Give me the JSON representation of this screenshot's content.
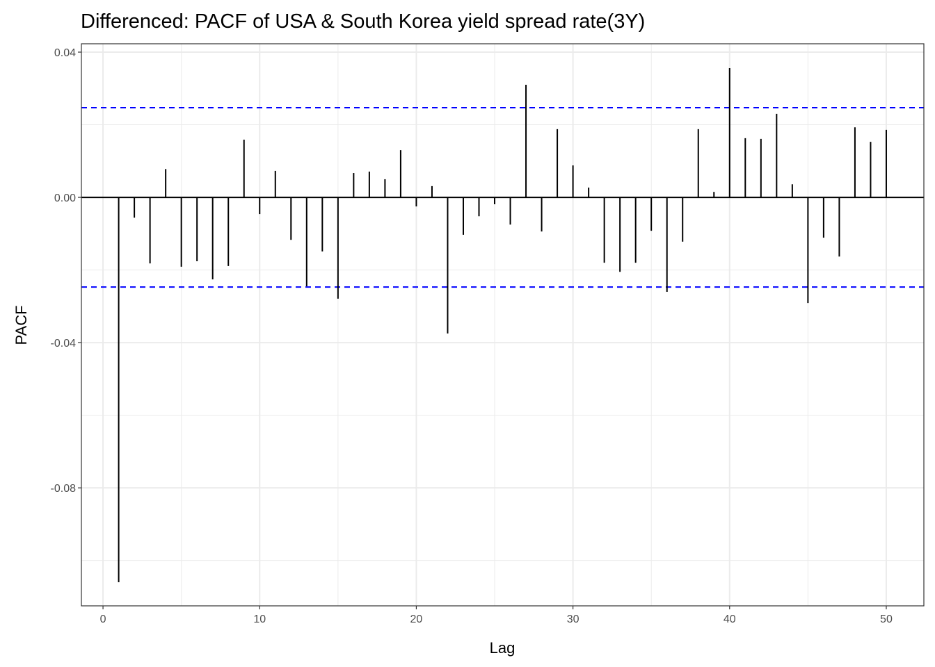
{
  "chart_data": {
    "type": "bar",
    "title": "Differenced: PACF of USA & South Korea yield spread rate(3Y)",
    "xlabel": "Lag",
    "ylabel": "PACF",
    "xlim": [
      -1.38,
      52.4
    ],
    "ylim": [
      -0.1125,
      0.0423
    ],
    "xticks": [
      0,
      10,
      20,
      30,
      40,
      50
    ],
    "xtick_labels": [
      "0",
      "10",
      "20",
      "30",
      "40",
      "50"
    ],
    "yticks": [
      0.04,
      0.0,
      -0.04,
      -0.08
    ],
    "ytick_labels": [
      "0.04",
      "0.00",
      "-0.04",
      "-0.08"
    ],
    "grid": true,
    "confidence_bound": 0.0247,
    "colors": {
      "bars": "#000000",
      "bounds": "#0000ff",
      "grid": "#ebebeb"
    },
    "lags": [
      1,
      2,
      3,
      4,
      5,
      6,
      7,
      8,
      9,
      10,
      11,
      12,
      13,
      14,
      15,
      16,
      17,
      18,
      19,
      20,
      21,
      22,
      23,
      24,
      25,
      26,
      27,
      28,
      29,
      30,
      31,
      32,
      33,
      34,
      35,
      36,
      37,
      38,
      39,
      40,
      41,
      42,
      43,
      44,
      45,
      46,
      47,
      48,
      49,
      50
    ],
    "values": [
      -0.106,
      -0.0056,
      -0.0182,
      0.0078,
      -0.0191,
      -0.0176,
      -0.0226,
      -0.0189,
      0.0159,
      -0.0046,
      0.0073,
      -0.0117,
      -0.0245,
      -0.0149,
      -0.0279,
      0.0067,
      0.0071,
      0.005,
      0.013,
      -0.0025,
      0.0031,
      -0.0375,
      -0.0103,
      -0.0052,
      -0.0019,
      -0.0075,
      0.031,
      -0.0094,
      0.0188,
      0.0088,
      0.0027,
      -0.018,
      -0.0205,
      -0.018,
      -0.0092,
      -0.026,
      -0.0122,
      0.0188,
      0.0015,
      0.0356,
      0.0163,
      0.0161,
      0.023,
      0.0036,
      -0.0291,
      -0.0111,
      -0.0163,
      0.0193,
      0.0153,
      0.0186
    ]
  }
}
